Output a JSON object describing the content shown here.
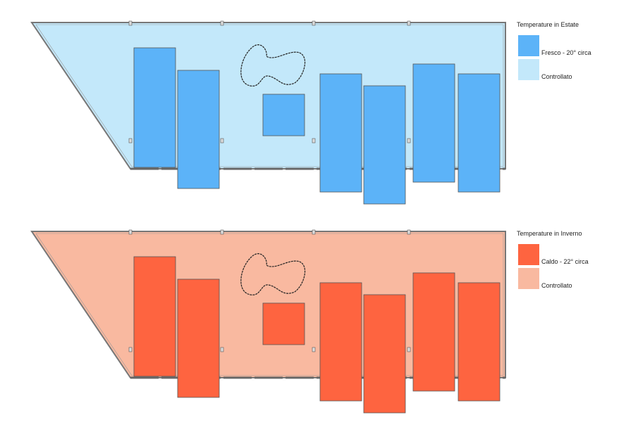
{
  "plans": [
    {
      "title": "Temperature in Estate",
      "legend": [
        {
          "label": "Fresco - 20° circa"
        },
        {
          "label": "Controllato"
        }
      ]
    },
    {
      "title": "Temperature in Inverno",
      "legend": [
        {
          "label": "Caldo - 22° circa"
        },
        {
          "label": "Controllato"
        }
      ]
    }
  ]
}
